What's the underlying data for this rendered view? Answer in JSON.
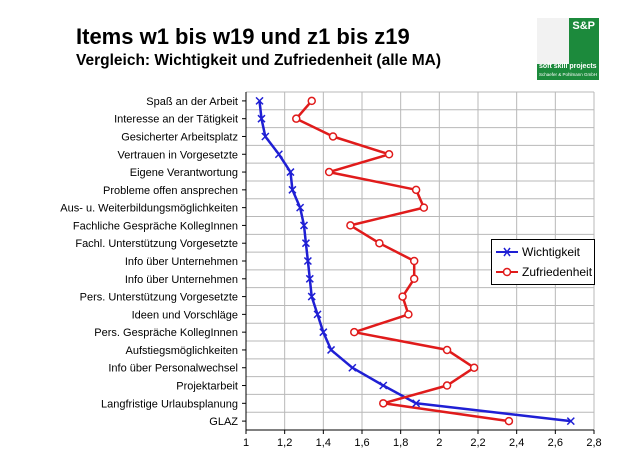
{
  "header": {
    "title": "Items w1 bis w19 und z1 bis z19",
    "subtitle": "Vergleich: Wichtigkeit und Zufriedenheit (alle MA)"
  },
  "logo": {
    "mark": "S&P",
    "line1": "soft skill projects",
    "line2": "Schaefer & Pohlmann GmbH",
    "color": "#1c8a3c"
  },
  "chart_data": {
    "type": "line",
    "orientation": "horizontal",
    "categories": [
      "Spaß an der Arbeit",
      "Interesse an der Tätigkeit",
      "Gesicherter Arbeitsplatz",
      "Vertrauen in Vorgesetzte",
      "Eigene Verantwortung",
      "Probleme offen ansprechen",
      "Aus- u. Weiterbildungsmöglichkeiten",
      "Fachliche Gespräche KollegInnen",
      "Fachl. Unterstützung Vorgesetzte",
      "Info über Unternehmen",
      "Info über Unternehmen",
      "Pers. Unterstützung Vorgesetzte",
      "Ideen und Vorschläge",
      "Pers. Gespräche KollegInnen",
      "Aufstiegsmöglichkeiten",
      "Info über Personalwechsel",
      "Projektarbeit",
      "Langfristige Urlaubsplanung",
      "GLAZ"
    ],
    "series": [
      {
        "name": "Wichtigkeit",
        "color": "#1f1fd4",
        "marker": "x",
        "values": [
          1.07,
          1.08,
          1.1,
          1.17,
          1.23,
          1.24,
          1.28,
          1.3,
          1.31,
          1.32,
          1.33,
          1.34,
          1.37,
          1.4,
          1.44,
          1.55,
          1.71,
          1.88,
          2.68
        ]
      },
      {
        "name": "Zufriedenheit",
        "color": "#e01b1b",
        "marker": "circle",
        "values": [
          1.34,
          1.26,
          1.45,
          1.74,
          1.43,
          1.88,
          1.92,
          1.54,
          1.69,
          1.87,
          1.87,
          1.81,
          1.84,
          1.56,
          2.04,
          2.18,
          2.04,
          1.71,
          2.36
        ]
      }
    ],
    "xlim": [
      1,
      2.8
    ],
    "xticks": [
      "1",
      "1,2",
      "1,4",
      "1,6",
      "1,8",
      "2",
      "2,2",
      "2,4",
      "2,6",
      "2,8"
    ],
    "xtick_values": [
      1,
      1.2,
      1.4,
      1.6,
      1.8,
      2,
      2.2,
      2.4,
      2.6,
      2.8
    ],
    "grid": true,
    "legend_position": "right"
  }
}
